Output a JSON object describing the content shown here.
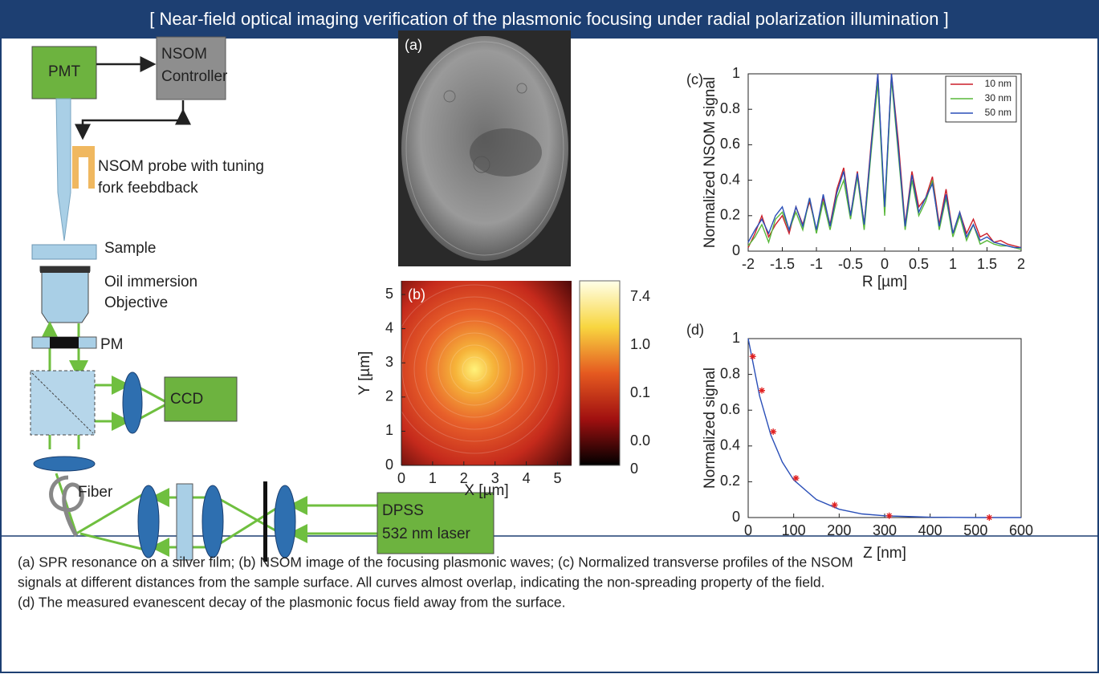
{
  "header": {
    "title": "[ Near-field optical imaging verification of the plasmonic focusing under radial polarization illumination ]"
  },
  "diagram": {
    "labels": [
      "PMT",
      "NSOM",
      "Controller",
      "NSOM probe with tuning",
      "fork feebdback",
      "Sample",
      "Oil immersion",
      "Objective",
      "PM",
      "CCD",
      "Fiber",
      "DPSS",
      "532 nm laser"
    ]
  },
  "image_a": {
    "label": "(a)"
  },
  "chart_data": [
    {
      "type": "heatmap",
      "panel": "(b)",
      "xlabel": "X [µm]",
      "ylabel": "Y [µm]",
      "xlim": [
        0,
        5.45
      ],
      "ylim": [
        0,
        5.4
      ],
      "xticks": [
        0,
        1,
        2,
        3,
        4,
        5
      ],
      "yticks": [
        0,
        1,
        2,
        3,
        4,
        5
      ],
      "colorbar_labels": [
        "7.4",
        "1.0",
        "0.1",
        "0.0",
        "0"
      ]
    },
    {
      "type": "line",
      "panel": "(c)",
      "xlabel": "R [µm]",
      "ylabel": "Normalized NSOM signal",
      "xlim": [
        -2,
        2
      ],
      "ylim": [
        0,
        1
      ],
      "xticks": [
        -2,
        -1.5,
        -1,
        -0.5,
        0,
        0.5,
        1,
        1.5,
        2
      ],
      "yticks": [
        0,
        0.2,
        0.4,
        0.6,
        0.8,
        1
      ],
      "legend": "upper right",
      "x": [
        -2,
        -1.9,
        -1.8,
        -1.7,
        -1.6,
        -1.5,
        -1.4,
        -1.3,
        -1.2,
        -1.1,
        -1,
        -0.9,
        -0.8,
        -0.7,
        -0.6,
        -0.5,
        -0.4,
        -0.3,
        -0.2,
        -0.1,
        0,
        0.1,
        0.2,
        0.3,
        0.4,
        0.5,
        0.6,
        0.7,
        0.8,
        0.9,
        1,
        1.1,
        1.2,
        1.3,
        1.4,
        1.5,
        1.6,
        1.7,
        1.8,
        1.9,
        2
      ],
      "series": [
        {
          "name": "10 nm",
          "color": "#cc1f2a",
          "values": [
            0.02,
            0.1,
            0.2,
            0.08,
            0.15,
            0.2,
            0.1,
            0.25,
            0.15,
            0.28,
            0.12,
            0.3,
            0.15,
            0.35,
            0.47,
            0.2,
            0.45,
            0.15,
            0.6,
            1,
            0.22,
            1,
            0.62,
            0.15,
            0.45,
            0.25,
            0.3,
            0.42,
            0.15,
            0.35,
            0.1,
            0.22,
            0.1,
            0.18,
            0.08,
            0.1,
            0.05,
            0.06,
            0.04,
            0.03,
            0.02
          ]
        },
        {
          "name": "30 nm",
          "color": "#58b83a",
          "values": [
            0.03,
            0.08,
            0.15,
            0.05,
            0.18,
            0.22,
            0.12,
            0.22,
            0.12,
            0.3,
            0.1,
            0.28,
            0.12,
            0.3,
            0.4,
            0.18,
            0.42,
            0.12,
            0.55,
            0.95,
            0.2,
            0.97,
            0.55,
            0.12,
            0.4,
            0.2,
            0.28,
            0.4,
            0.12,
            0.3,
            0.08,
            0.2,
            0.06,
            0.15,
            0.04,
            0.06,
            0.04,
            0.03,
            0.03,
            0.02,
            0.01
          ]
        },
        {
          "name": "50 nm",
          "color": "#2a4fb8",
          "values": [
            0.05,
            0.12,
            0.18,
            0.1,
            0.2,
            0.25,
            0.12,
            0.25,
            0.14,
            0.3,
            0.12,
            0.32,
            0.14,
            0.33,
            0.45,
            0.2,
            0.44,
            0.15,
            0.58,
            1,
            0.25,
            1,
            0.58,
            0.14,
            0.43,
            0.22,
            0.3,
            0.38,
            0.14,
            0.32,
            0.1,
            0.22,
            0.08,
            0.15,
            0.06,
            0.08,
            0.05,
            0.04,
            0.03,
            0.02,
            0.02
          ]
        }
      ]
    },
    {
      "type": "scatter",
      "panel": "(d)",
      "xlabel": "Z [nm]",
      "ylabel": "Normalized signal",
      "xlim": [
        0,
        600
      ],
      "ylim": [
        0,
        1
      ],
      "xticks": [
        0,
        100,
        200,
        300,
        400,
        500,
        600
      ],
      "yticks": [
        0,
        0.2,
        0.4,
        0.6,
        0.8,
        1
      ],
      "series": [
        {
          "style": "line",
          "color": "#2a4fb8",
          "x": [
            0,
            25,
            50,
            75,
            100,
            150,
            200,
            250,
            300,
            400,
            500,
            600
          ],
          "values": [
            1,
            0.68,
            0.46,
            0.31,
            0.21,
            0.1,
            0.046,
            0.02,
            0.01,
            0.002,
            0,
            0
          ]
        },
        {
          "style": "markers",
          "color": "#e02020",
          "x": [
            10,
            30,
            55,
            105,
            190,
            310,
            530
          ],
          "values": [
            0.9,
            0.71,
            0.48,
            0.22,
            0.07,
            0.01,
            0
          ]
        }
      ]
    }
  ],
  "caption": {
    "lines": [
      "(a) SPR resonance on a silver film; (b) NSOM image of the focusing plasmonic waves; (c) Normalized transverse profiles of the NSOM",
      "signals at different distances from the sample surface. All curves almost overlap, indicating the non-spreading property of the field.",
      "(d) The measured evanescent decay of the plasmonic focus field away from the surface."
    ]
  }
}
